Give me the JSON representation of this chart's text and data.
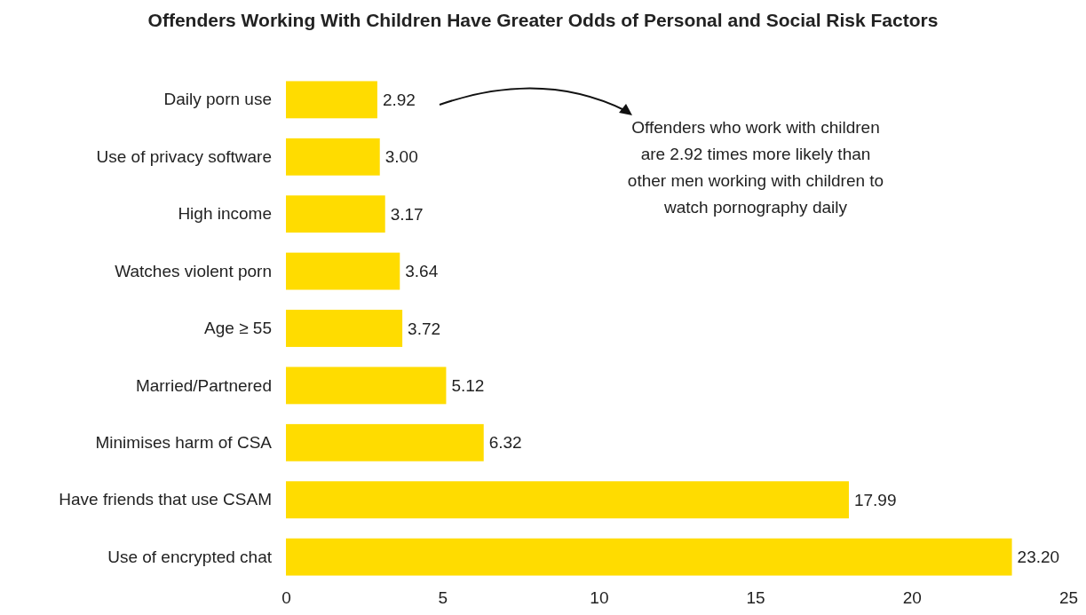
{
  "chart_data": {
    "type": "bar",
    "orientation": "horizontal",
    "title": "Offenders Working With Children Have Greater Odds of Personal and Social Risk Factors",
    "categories": [
      "Daily porn use",
      "Use of privacy software",
      "High income",
      "Watches violent porn",
      "Age ≥ 55",
      "Married/Partnered",
      "Minimises harm of CSA",
      "Have friends that use CSAM",
      "Use of encrypted chat"
    ],
    "values": [
      2.92,
      3.0,
      3.17,
      3.64,
      3.72,
      5.12,
      6.32,
      17.99,
      23.2
    ],
    "value_labels": [
      "2.92",
      "3.00",
      "3.17",
      "3.64",
      "3.72",
      "5.12",
      "6.32",
      "17.99",
      "23.20"
    ],
    "color": "#ffdc00",
    "xlim": [
      0,
      25
    ],
    "xticks": [
      0,
      5,
      10,
      15,
      20,
      25
    ],
    "annotations": [
      "Offenders who work with children are 2.92 times more likely than other men working with children to watch pornography daily"
    ]
  }
}
